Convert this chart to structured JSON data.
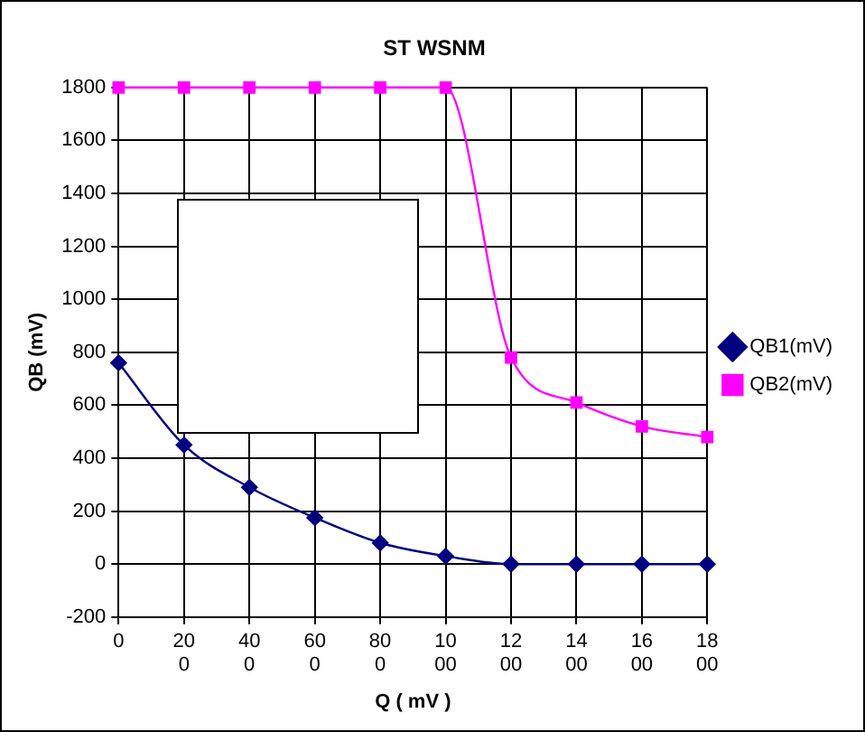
{
  "chart_data": {
    "type": "line",
    "title": "ST WSNM",
    "xlabel": "Q ( mV )",
    "ylabel": "QB (mV)",
    "x": [
      0,
      200,
      400,
      600,
      800,
      1000,
      1200,
      1400,
      1600,
      1800
    ],
    "series": [
      {
        "name": "QB1(mV)",
        "color": "#000080",
        "marker": "diamond",
        "values": [
          760,
          450,
          290,
          175,
          80,
          30,
          0,
          0,
          0,
          0
        ]
      },
      {
        "name": "QB2(mV)",
        "color": "#ff00ff",
        "marker": "square",
        "values": [
          1800,
          1800,
          1800,
          1800,
          1800,
          1800,
          780,
          610,
          520,
          480
        ]
      }
    ],
    "xlim": [
      0,
      1800
    ],
    "xticks": [
      0,
      200,
      400,
      600,
      800,
      1000,
      1200,
      1400,
      1600,
      1800
    ],
    "ylim": [
      -200,
      1800
    ],
    "yticks": [
      -200,
      0,
      200,
      400,
      600,
      800,
      1000,
      1200,
      1400,
      1600,
      1800
    ],
    "grid": true,
    "legend": "right"
  }
}
